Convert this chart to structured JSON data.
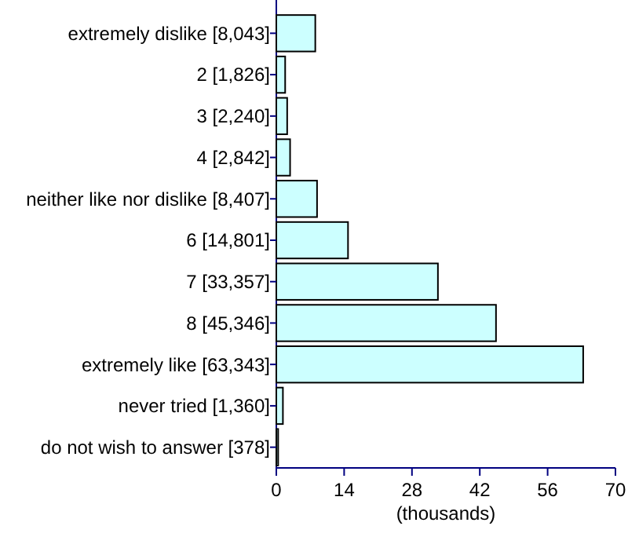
{
  "chart_data": {
    "type": "bar",
    "orientation": "horizontal",
    "xlabel": "(thousands)",
    "categories": [
      "extremely dislike [8,043]",
      "2 [1,826]",
      "3 [2,240]",
      "4 [2,842]",
      "neither like nor dislike [8,407]",
      "6 [14,801]",
      "7 [33,357]",
      "8 [45,346]",
      "extremely like [63,343]",
      "never tried [1,360]",
      "do not wish to answer [378]"
    ],
    "values": [
      8.043,
      1.826,
      2.24,
      2.842,
      8.407,
      14.801,
      33.357,
      45.346,
      63.343,
      1.36,
      0.378
    ],
    "color": "#ccffff",
    "xlim": [
      0,
      70
    ],
    "xticks": [
      0,
      14,
      28,
      42,
      56,
      70
    ],
    "grid": false
  }
}
